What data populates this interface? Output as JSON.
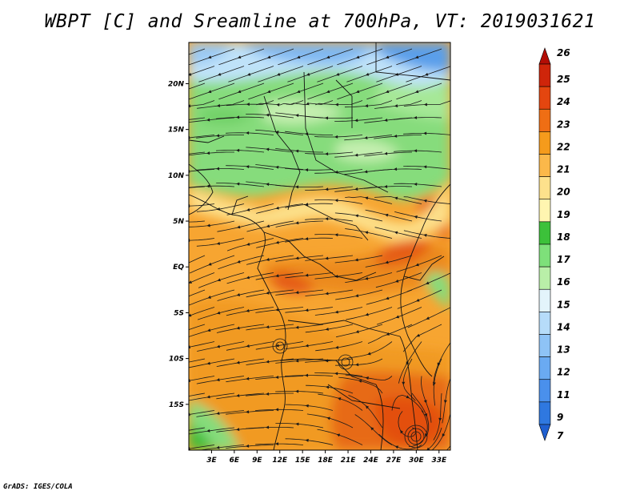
{
  "title": "WBPT [C] and Sreamline at 700hPa, VT: 2019031621",
  "footer": "GrADS: IGES/COLA",
  "map": {
    "lat_labels": [
      "20N",
      "15N",
      "10N",
      "5N",
      "EQ",
      "5S",
      "10S",
      "15S"
    ],
    "lon_labels": [
      "3E",
      "6E",
      "9E",
      "12E",
      "15E",
      "18E",
      "21E",
      "24E",
      "27E",
      "30E",
      "33E"
    ],
    "lat_values": [
      20,
      15,
      10,
      5,
      0,
      -5,
      -10,
      -15
    ],
    "lon_values": [
      3,
      6,
      9,
      12,
      15,
      18,
      21,
      24,
      27,
      30,
      33
    ],
    "lon_range": [
      0,
      34.5
    ],
    "lat_range": [
      -20,
      24.5
    ]
  },
  "colorbar": {
    "labels": [
      "7",
      "9",
      "11",
      "12",
      "13",
      "14",
      "15",
      "16",
      "17",
      "18",
      "19",
      "20",
      "21",
      "22",
      "23",
      "24",
      "25",
      "26"
    ],
    "colors": [
      "#1f5fd0",
      "#2f78e0",
      "#4a90ec",
      "#6aaaf2",
      "#8ec3f6",
      "#b6dcf9",
      "#e3f4fb",
      "#b9efa8",
      "#7ee07a",
      "#3cc13a",
      "#fff5b0",
      "#fde18c",
      "#fbb84a",
      "#f59b1c",
      "#ef6e14",
      "#e4460f",
      "#cf250a",
      "#b30d05"
    ]
  }
}
